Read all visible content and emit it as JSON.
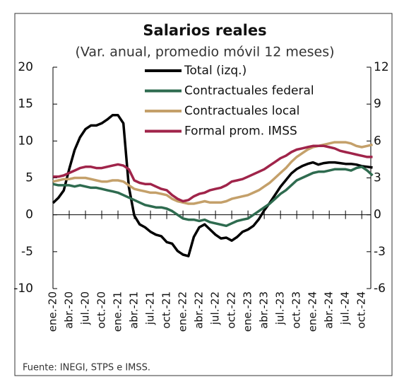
{
  "chart_data": {
    "type": "line",
    "title": "Salarios reales",
    "subtitle": "(Var. anual, promedio móvil 12 meses)",
    "footnote": "Fuente: INEGI, STPS e IMSS.",
    "categories": [
      "ene.-20",
      null,
      null,
      "abr.-20",
      null,
      null,
      "jul.-20",
      null,
      null,
      "oct.-20",
      null,
      null,
      "ene.-21",
      null,
      null,
      "abr.-21",
      null,
      null,
      "jul.-21",
      null,
      null,
      "oct.-21",
      null,
      null,
      "ene.-22",
      null,
      null,
      "abr.-22",
      null,
      null,
      "jul.-22",
      null,
      null,
      "oct.-22",
      null,
      null,
      "ene.-23",
      null,
      null,
      "abr.-23",
      null,
      null,
      "jul.-23",
      null,
      null,
      "oct.-23",
      null,
      null,
      "ene.-24",
      null,
      null,
      "abr.-24",
      null,
      null,
      "jul.-24",
      null,
      null,
      "oct.-24",
      null,
      null
    ],
    "ylim": [
      -10,
      20
    ],
    "yticks": [
      20,
      15,
      10,
      5,
      0,
      -5,
      -10
    ],
    "y2lim": [
      -6,
      12
    ],
    "y2ticks": [
      12,
      9,
      6,
      3,
      0,
      -3,
      -6
    ],
    "legend": "top-center",
    "series": [
      {
        "name": "Total (izq.)",
        "color": "#000000",
        "values": [
          1.6,
          2.3,
          3.3,
          6.2,
          8.8,
          10.5,
          11.6,
          12.1,
          12.1,
          12.4,
          12.9,
          13.5,
          13.5,
          12.4,
          3.8,
          -0.1,
          -1.3,
          -1.7,
          -2.3,
          -2.7,
          -2.9,
          -3.7,
          -3.9,
          -4.9,
          -5.4,
          -5.6,
          -3.0,
          -1.7,
          -1.3,
          -2.0,
          -2.7,
          -3.2,
          -3.1,
          -3.5,
          -3.0,
          -2.3,
          -2.0,
          -1.5,
          -0.6,
          0.6,
          1.6,
          2.7,
          3.8,
          4.7,
          5.6,
          6.2,
          6.6,
          6.9,
          7.1,
          6.8,
          7.0,
          7.1,
          7.1,
          7.0,
          6.9,
          6.9,
          6.8,
          6.6,
          6.5,
          6.4
        ]
      },
      {
        "name": "Contractuales federal",
        "color": "#2e6b4f",
        "axis": "y2",
        "values": [
          2.5,
          2.4,
          2.4,
          2.4,
          2.3,
          2.4,
          2.3,
          2.2,
          2.2,
          2.1,
          2.0,
          1.9,
          1.8,
          1.6,
          1.4,
          1.2,
          1.0,
          0.8,
          0.7,
          0.6,
          0.6,
          0.5,
          0.3,
          0.0,
          -0.3,
          -0.4,
          -0.4,
          -0.5,
          -0.4,
          -0.6,
          -0.7,
          -0.8,
          -0.9,
          -0.7,
          -0.5,
          -0.4,
          -0.3,
          0.0,
          0.3,
          0.6,
          0.9,
          1.3,
          1.7,
          2.0,
          2.4,
          2.8,
          3.0,
          3.2,
          3.4,
          3.5,
          3.5,
          3.6,
          3.7,
          3.7,
          3.7,
          3.6,
          3.8,
          3.9,
          3.6,
          3.2
        ]
      },
      {
        "name": "Contractuales local",
        "color": "#c4a06a",
        "axis": "y2",
        "values": [
          2.7,
          2.8,
          2.9,
          2.9,
          3.0,
          3.0,
          3.0,
          2.9,
          2.8,
          2.7,
          2.7,
          2.8,
          2.8,
          2.7,
          2.4,
          2.1,
          2.0,
          1.9,
          1.8,
          1.8,
          1.7,
          1.6,
          1.3,
          1.1,
          1.0,
          0.9,
          0.9,
          1.0,
          1.1,
          1.0,
          1.0,
          1.0,
          1.1,
          1.3,
          1.4,
          1.5,
          1.6,
          1.8,
          2.0,
          2.3,
          2.6,
          3.0,
          3.4,
          3.8,
          4.3,
          4.7,
          5.0,
          5.3,
          5.5,
          5.6,
          5.7,
          5.8,
          5.9,
          5.9,
          5.9,
          5.8,
          5.6,
          5.5,
          5.6,
          5.7
        ]
      },
      {
        "name": "Formal prom. IMSS",
        "color": "#a0244a",
        "axis": "y2",
        "values": [
          3.1,
          3.1,
          3.2,
          3.4,
          3.6,
          3.8,
          3.9,
          3.9,
          3.8,
          3.8,
          3.9,
          4.0,
          4.1,
          4.0,
          3.7,
          2.8,
          2.6,
          2.5,
          2.5,
          2.3,
          2.1,
          2.0,
          1.6,
          1.3,
          1.1,
          1.2,
          1.5,
          1.7,
          1.8,
          2.0,
          2.1,
          2.2,
          2.4,
          2.7,
          2.8,
          2.9,
          3.1,
          3.3,
          3.5,
          3.7,
          4.0,
          4.3,
          4.6,
          4.8,
          5.1,
          5.3,
          5.4,
          5.5,
          5.6,
          5.6,
          5.6,
          5.5,
          5.4,
          5.2,
          5.1,
          5.0,
          4.9,
          4.8,
          4.7,
          4.7
        ]
      }
    ]
  }
}
